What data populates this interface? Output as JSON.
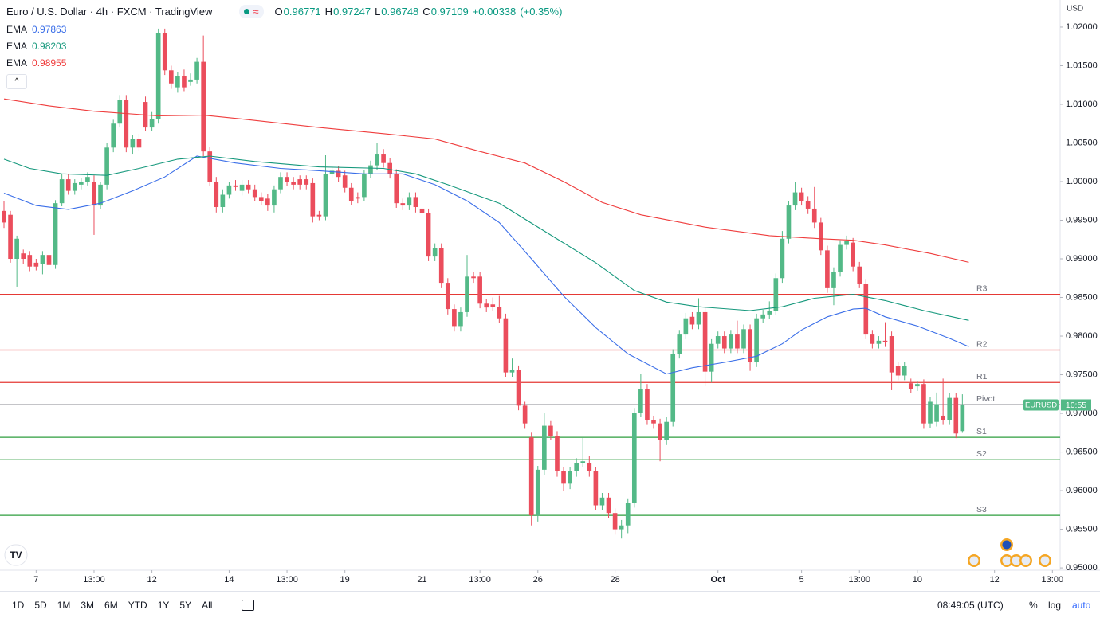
{
  "chart_data": {
    "type": "candlestick",
    "title": "Euro / U.S. Dollar · 4h · FXCM · TradingView",
    "ohlc_labels": [
      "O",
      "H",
      "L",
      "C"
    ],
    "change": "+0.00338",
    "change_pct": "(+0.35%)",
    "currency": "USD",
    "symbol_tag": "EURUSD",
    "countdown": "10:55",
    "up_color": "#53b987",
    "down_color": "#eb4d5c",
    "xlim": [
      -0.62,
      164.2
    ],
    "ylim": [
      0.9497,
      1.0235
    ],
    "xticks": [
      {
        "value": 5,
        "label": "7"
      },
      {
        "value": 14,
        "label": "13:00"
      },
      {
        "value": 23,
        "label": "12"
      },
      {
        "value": 35,
        "label": "14"
      },
      {
        "value": 44,
        "label": "13:00"
      },
      {
        "value": 53,
        "label": "19"
      },
      {
        "value": 65,
        "label": "21"
      },
      {
        "value": 74,
        "label": "13:00"
      },
      {
        "value": 83,
        "label": "26"
      },
      {
        "value": 95,
        "label": "28"
      },
      {
        "value": 111,
        "label": "Oct"
      },
      {
        "value": 124,
        "label": "5"
      },
      {
        "value": 133,
        "label": "13:00"
      },
      {
        "value": 142,
        "label": "10"
      },
      {
        "value": 154,
        "label": "12"
      },
      {
        "value": 163,
        "label": "13:00"
      }
    ],
    "yticks": [
      {
        "value": 1.02,
        "label": "1.02000"
      },
      {
        "value": 1.015,
        "label": "1.01500"
      },
      {
        "value": 1.01,
        "label": "1.01000"
      },
      {
        "value": 1.005,
        "label": "1.00500"
      },
      {
        "value": 1.0,
        "label": "1.00000"
      },
      {
        "value": 0.995,
        "label": "0.99500"
      },
      {
        "value": 0.99,
        "label": "0.99000"
      },
      {
        "value": 0.985,
        "label": "0.98500"
      },
      {
        "value": 0.98,
        "label": "0.98000"
      },
      {
        "value": 0.975,
        "label": "0.97500"
      },
      {
        "value": 0.97,
        "label": "0.97000"
      },
      {
        "value": 0.965,
        "label": "0.96500"
      },
      {
        "value": 0.96,
        "label": "0.96000"
      },
      {
        "value": 0.955,
        "label": "0.95500"
      },
      {
        "value": 0.95,
        "label": "0.95000"
      }
    ],
    "grid": false,
    "levels": [
      {
        "label": "R3",
        "value": 0.9854,
        "color": "#e53935"
      },
      {
        "label": "R2",
        "value": 0.9782,
        "color": "#e53935"
      },
      {
        "label": "R1",
        "value": 0.974,
        "color": "#e53935"
      },
      {
        "label": "Pivot",
        "value": 0.9711,
        "color": "#131722"
      },
      {
        "label": "S1",
        "value": 0.9669,
        "color": "#2e9e3e"
      },
      {
        "label": "S2",
        "value": 0.964,
        "color": "#2e9e3e"
      },
      {
        "label": "S3",
        "value": 0.9568,
        "color": "#2e9e3e"
      }
    ],
    "series": [
      {
        "name": "EMA",
        "color": "#3a6ee8",
        "x": [
          0,
          5,
          10,
          15,
          20,
          25,
          30,
          36,
          43,
          49,
          56,
          62,
          67,
          72,
          77,
          82,
          87,
          92,
          97,
          103,
          107,
          112,
          117,
          121,
          124,
          128,
          132,
          134,
          137,
          142,
          147,
          150
        ],
        "values": [
          0.9985,
          0.9969,
          0.9964,
          0.9972,
          0.9988,
          1.0006,
          1.0033,
          1.0024,
          1.0017,
          1.0014,
          1.001,
          1.001,
          0.9996,
          0.9975,
          0.9947,
          0.99,
          0.9852,
          0.9811,
          0.9777,
          0.9751,
          0.9759,
          0.9766,
          0.9774,
          0.979,
          0.9808,
          0.9825,
          0.9835,
          0.9836,
          0.9825,
          0.9813,
          0.9797,
          0.97863
        ]
      },
      {
        "name": "EMA",
        "color": "#15987c",
        "x": [
          0,
          4,
          9,
          16,
          21,
          27,
          32,
          39,
          49,
          59,
          64,
          69,
          77,
          84,
          92,
          98,
          103,
          108,
          116,
          121,
          126,
          132,
          137,
          143,
          150
        ],
        "values": [
          1.0029,
          1.0017,
          1.001,
          1.0008,
          1.0017,
          1.0029,
          1.0033,
          1.0026,
          1.0019,
          1.0017,
          1.001,
          0.9996,
          0.9972,
          0.9936,
          0.9895,
          0.9859,
          0.9844,
          0.9838,
          0.9833,
          0.9838,
          0.9849,
          0.9854,
          0.9846,
          0.9833,
          0.98203
        ]
      },
      {
        "name": "EMA",
        "color": "#ef3d3d",
        "x": [
          0,
          7,
          14,
          24,
          31,
          37,
          49,
          59,
          67,
          74,
          81,
          87,
          93,
          99,
          109,
          119,
          127,
          132,
          137,
          144,
          150
        ],
        "values": [
          1.0107,
          1.0098,
          1.0091,
          1.0085,
          1.0086,
          1.0081,
          1.007,
          1.0062,
          1.0055,
          1.0039,
          1.0024,
          1.0,
          0.9973,
          0.9957,
          0.9941,
          0.993,
          0.9926,
          0.9924,
          0.9918,
          0.9907,
          0.98955
        ]
      }
    ],
    "candles": [
      [
        0.9962,
        0.9975,
        0.994,
        0.9947
      ],
      [
        0.9957,
        0.9962,
        0.9895,
        0.99
      ],
      [
        0.99,
        0.993,
        0.9864,
        0.9926
      ],
      [
        0.9907,
        0.9912,
        0.9893,
        0.99
      ],
      [
        0.9905,
        0.991,
        0.9884,
        0.989
      ],
      [
        0.9895,
        0.99,
        0.9885,
        0.989
      ],
      [
        0.9893,
        0.991,
        0.988,
        0.9905
      ],
      [
        0.9905,
        0.991,
        0.9875,
        0.9892
      ],
      [
        0.9892,
        0.9976,
        0.9887,
        0.9972
      ],
      [
        0.9972,
        1.001,
        0.9968,
        1.0003
      ],
      [
        1.0003,
        1.001,
        0.9983,
        0.9988
      ],
      [
        0.9988,
        1.0003,
        0.9983,
        0.9998
      ],
      [
        0.9996,
        1.0005,
        0.999,
        1.0
      ],
      [
        1.0,
        1.0012,
        0.9995,
        1.0006
      ],
      [
        1.0,
        1.0008,
        0.9931,
        0.9969
      ],
      [
        0.9969,
        1.0,
        0.9964,
        0.9996
      ],
      [
        0.9996,
        1.005,
        0.999,
        1.0044
      ],
      [
        1.0044,
        1.008,
        1.0038,
        1.0075
      ],
      [
        1.0075,
        1.0112,
        1.007,
        1.0106
      ],
      [
        1.0106,
        1.0112,
        1.0038,
        1.0044
      ],
      [
        1.0044,
        1.006,
        1.0035,
        1.0055
      ],
      [
        1.0055,
        1.0062,
        1.004,
        1.0044
      ],
      [
        1.0103,
        1.011,
        1.0065,
        1.007
      ],
      [
        1.007,
        1.009,
        1.0065,
        1.0081
      ],
      [
        1.0081,
        1.0198,
        1.0075,
        1.0192
      ],
      [
        1.0192,
        1.0198,
        1.0138,
        1.0144
      ],
      [
        1.0144,
        1.015,
        1.012,
        1.0127
      ],
      [
        1.0122,
        1.0142,
        1.0115,
        1.0137
      ],
      [
        1.0137,
        1.0145,
        1.0117,
        1.0122
      ],
      [
        1.0129,
        1.014,
        1.0124,
        1.0132
      ],
      [
        1.0132,
        1.016,
        1.0127,
        1.0155
      ],
      [
        1.0155,
        1.0189,
        1.0033,
        1.0039
      ],
      [
        1.0039,
        1.0045,
        0.9994,
        1.0
      ],
      [
        1.0,
        1.0006,
        0.996,
        0.9967
      ],
      [
        0.9967,
        0.999,
        0.996,
        0.9983
      ],
      [
        0.9983,
        1.0,
        0.9978,
        0.9995
      ],
      [
        0.9995,
        1.0002,
        0.9988,
        0.9993
      ],
      [
        0.9988,
        1.0002,
        0.9982,
        0.9996
      ],
      [
        0.9996,
        1.0002,
        0.9985,
        0.999
      ],
      [
        0.999,
        0.9996,
        0.9975,
        0.998
      ],
      [
        0.998,
        0.9986,
        0.997,
        0.9975
      ],
      [
        0.9978,
        0.9984,
        0.9962,
        0.9969
      ],
      [
        0.9969,
        0.9995,
        0.996,
        0.999
      ],
      [
        0.999,
        1.0012,
        0.9985,
        1.0006
      ],
      [
        1.0006,
        1.0012,
        0.9994,
        1.0
      ],
      [
        1.0,
        1.0006,
        0.999,
        0.9996
      ],
      [
        1.0003,
        1.0008,
        0.999,
        0.9996
      ],
      [
        1.0003,
        1.0008,
        0.999,
        0.9996
      ],
      [
        0.9998,
        1.0004,
        0.9947,
        0.9955
      ],
      [
        0.9957,
        0.9962,
        0.995,
        0.9955
      ],
      [
        0.9955,
        1.0034,
        0.995,
        1.001
      ],
      [
        1.001,
        1.002,
        1.0005,
        1.0014
      ],
      [
        1.0014,
        1.002,
        1.0,
        1.0006
      ],
      [
        1.0008,
        1.0014,
        0.9986,
        0.9992
      ],
      [
        0.9992,
        0.9998,
        0.997,
        0.9975
      ],
      [
        0.998,
        0.9986,
        0.9972,
        0.9978
      ],
      [
        0.998,
        1.0015,
        0.9975,
        1.001
      ],
      [
        1.001,
        1.0027,
        1.0005,
        1.0021
      ],
      [
        1.0021,
        1.005,
        1.0015,
        1.0035
      ],
      [
        1.0035,
        1.0042,
        1.0018,
        1.0024
      ],
      [
        1.0024,
        1.003,
        1.0004,
        1.001
      ],
      [
        1.001,
        1.0016,
        0.9966,
        0.9972
      ],
      [
        0.9972,
        0.9978,
        0.9963,
        0.9969
      ],
      [
        0.9969,
        0.9986,
        0.9963,
        0.998
      ],
      [
        0.998,
        0.9986,
        0.996,
        0.9967
      ],
      [
        0.9965,
        0.997,
        0.9953,
        0.9959
      ],
      [
        0.9959,
        0.9965,
        0.9897,
        0.9903
      ],
      [
        0.9903,
        0.992,
        0.9897,
        0.9914
      ],
      [
        0.9914,
        0.992,
        0.9862,
        0.9869
      ],
      [
        0.9869,
        0.9875,
        0.9828,
        0.9835
      ],
      [
        0.9835,
        0.9841,
        0.9806,
        0.9813
      ],
      [
        0.9813,
        0.9837,
        0.9806,
        0.9831
      ],
      [
        0.9831,
        0.9905,
        0.9825,
        0.9877
      ],
      [
        0.9877,
        0.9883,
        0.9869,
        0.9875
      ],
      [
        0.9877,
        0.9883,
        0.9836,
        0.9842
      ],
      [
        0.9842,
        0.9848,
        0.9831,
        0.9837
      ],
      [
        0.9841,
        0.985,
        0.9832,
        0.9838
      ],
      [
        0.9838,
        0.9852,
        0.9817,
        0.9823
      ],
      [
        0.9823,
        0.9829,
        0.9747,
        0.9753
      ],
      [
        0.9753,
        0.9771,
        0.9747,
        0.9756
      ],
      [
        0.9756,
        0.9762,
        0.9704,
        0.971
      ],
      [
        0.971,
        0.9715,
        0.968,
        0.9687
      ],
      [
        0.9669,
        0.9675,
        0.9555,
        0.9568
      ],
      [
        0.9568,
        0.9632,
        0.956,
        0.9627
      ],
      [
        0.9627,
        0.97,
        0.962,
        0.9684
      ],
      [
        0.9684,
        0.969,
        0.9665,
        0.9671
      ],
      [
        0.9671,
        0.9677,
        0.9618,
        0.9625
      ],
      [
        0.9625,
        0.9631,
        0.96,
        0.9609
      ],
      [
        0.9609,
        0.963,
        0.9602,
        0.9625
      ],
      [
        0.9625,
        0.9642,
        0.9618,
        0.9636
      ],
      [
        0.9636,
        0.9669,
        0.963,
        0.9638
      ],
      [
        0.9636,
        0.9645,
        0.9618,
        0.9625
      ],
      [
        0.9625,
        0.9631,
        0.9575,
        0.9581
      ],
      [
        0.9581,
        0.9597,
        0.9575,
        0.9591
      ],
      [
        0.9591,
        0.9597,
        0.9565,
        0.9571
      ],
      [
        0.9571,
        0.9577,
        0.9543,
        0.955
      ],
      [
        0.955,
        0.9562,
        0.9538,
        0.9555
      ],
      [
        0.9555,
        0.959,
        0.9545,
        0.9584
      ],
      [
        0.9584,
        0.9707,
        0.9578,
        0.9701
      ],
      [
        0.9701,
        0.9751,
        0.9695,
        0.9732
      ],
      [
        0.9732,
        0.9738,
        0.9685,
        0.9691
      ],
      [
        0.9691,
        0.9697,
        0.968,
        0.9687
      ],
      [
        0.9687,
        0.9693,
        0.9638,
        0.9665
      ],
      [
        0.9665,
        0.9695,
        0.9659,
        0.9689
      ],
      [
        0.9689,
        0.9783,
        0.9683,
        0.9777
      ],
      [
        0.9777,
        0.9808,
        0.9771,
        0.9802
      ],
      [
        0.9802,
        0.983,
        0.9796,
        0.9823
      ],
      [
        0.9825,
        0.9831,
        0.9809,
        0.9815
      ],
      [
        0.9815,
        0.9849,
        0.9809,
        0.9831
      ],
      [
        0.9831,
        0.9837,
        0.9735,
        0.9754
      ],
      [
        0.9754,
        0.9796,
        0.974,
        0.979
      ],
      [
        0.979,
        0.9806,
        0.9784,
        0.98
      ],
      [
        0.98,
        0.9806,
        0.9778,
        0.9784
      ],
      [
        0.9784,
        0.9808,
        0.9778,
        0.9802
      ],
      [
        0.9802,
        0.982,
        0.9778,
        0.9784
      ],
      [
        0.9784,
        0.9815,
        0.9778,
        0.9809
      ],
      [
        0.9809,
        0.9815,
        0.9755,
        0.9766
      ],
      [
        0.9766,
        0.9829,
        0.976,
        0.9823
      ],
      [
        0.9823,
        0.9834,
        0.9817,
        0.9828
      ],
      [
        0.9828,
        0.9845,
        0.9822,
        0.9833
      ],
      [
        0.9833,
        0.9881,
        0.9827,
        0.9875
      ],
      [
        0.9875,
        0.9936,
        0.9869,
        0.9926
      ],
      [
        0.9926,
        0.9975,
        0.992,
        0.9969
      ],
      [
        0.9969,
        1.0,
        0.9963,
        0.9986
      ],
      [
        0.9986,
        0.9992,
        0.9969,
        0.9975
      ],
      [
        0.9975,
        0.9981,
        0.9958,
        0.9965
      ],
      [
        0.9965,
        0.9993,
        0.994,
        0.9947
      ],
      [
        0.9947,
        0.9953,
        0.9905,
        0.9911
      ],
      [
        0.9911,
        0.9917,
        0.9856,
        0.9862
      ],
      [
        0.9862,
        0.9889,
        0.984,
        0.9883
      ],
      [
        0.9883,
        0.9924,
        0.9877,
        0.9918
      ],
      [
        0.9918,
        0.993,
        0.9912,
        0.9923
      ],
      [
        0.9921,
        0.9927,
        0.9884,
        0.989
      ],
      [
        0.989,
        0.9896,
        0.9862,
        0.9868
      ],
      [
        0.9868,
        0.9874,
        0.9796,
        0.9802
      ],
      [
        0.9802,
        0.9808,
        0.9784,
        0.979
      ],
      [
        0.979,
        0.98,
        0.9784,
        0.9794
      ],
      [
        0.9794,
        0.9818,
        0.9786,
        0.9792
      ],
      [
        0.98,
        0.9806,
        0.973,
        0.9753
      ],
      [
        0.9761,
        0.9767,
        0.9743,
        0.9749
      ],
      [
        0.9749,
        0.9767,
        0.9743,
        0.9761
      ],
      [
        0.9739,
        0.9745,
        0.9726,
        0.9732
      ],
      [
        0.9735,
        0.9742,
        0.9729,
        0.9738
      ],
      [
        0.9738,
        0.9744,
        0.968,
        0.9687
      ],
      [
        0.9687,
        0.9721,
        0.9681,
        0.9715
      ],
      [
        0.9689,
        0.9727,
        0.9683,
        0.9712
      ],
      [
        0.9697,
        0.9745,
        0.9685,
        0.9691
      ],
      [
        0.9691,
        0.9726,
        0.9685,
        0.972
      ],
      [
        0.972,
        0.9726,
        0.9668,
        0.9674
      ],
      [
        0.96771,
        0.97247,
        0.96748,
        0.97109
      ]
    ]
  },
  "toolbar": {
    "ranges": [
      "1D",
      "5D",
      "1M",
      "3M",
      "6M",
      "YTD",
      "1Y",
      "5Y",
      "All"
    ],
    "clock": "08:49:05 (UTC)",
    "percent": "%",
    "log": "log",
    "auto": "auto"
  }
}
